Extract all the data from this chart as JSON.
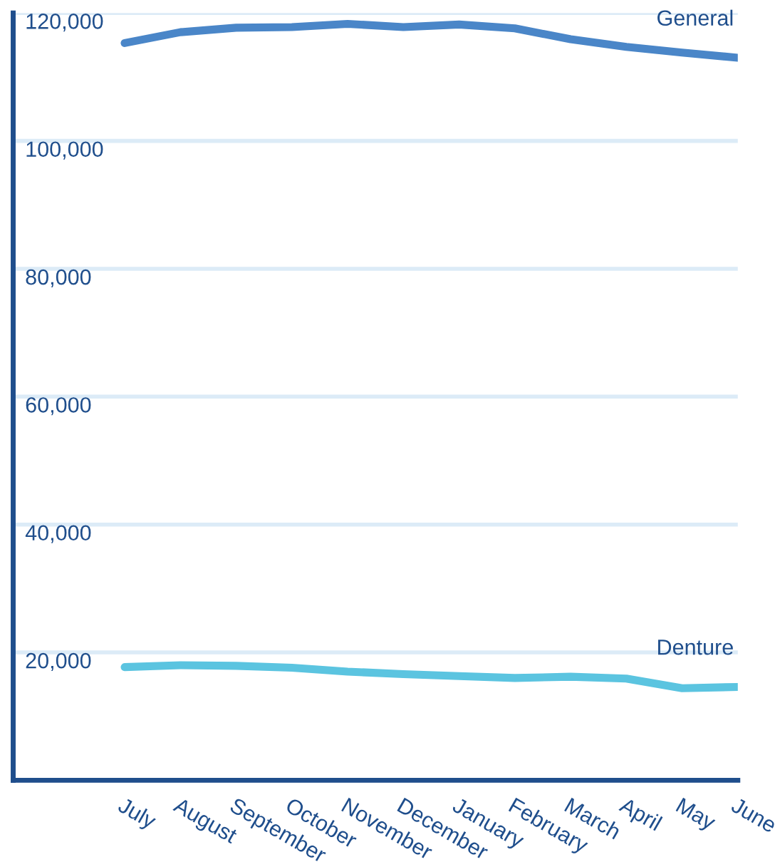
{
  "chart_data": {
    "type": "line",
    "categories": [
      "July",
      "August",
      "September",
      "October",
      "November",
      "December",
      "January",
      "February",
      "March",
      "April",
      "May",
      "June"
    ],
    "series": [
      {
        "name": "General",
        "color": "#4a86c8",
        "values": [
          115300,
          117000,
          117700,
          117800,
          118300,
          117800,
          118200,
          117600,
          115900,
          114700,
          113800,
          113000
        ]
      },
      {
        "name": "Denture",
        "color": "#5bc4e0",
        "values": [
          17700,
          18000,
          17900,
          17600,
          17000,
          16600,
          16300,
          16000,
          16200,
          15900,
          14400,
          14600
        ]
      }
    ],
    "ylim": [
      0,
      120000
    ],
    "yticks": [
      {
        "value": 20000,
        "label": "20,000"
      },
      {
        "value": 40000,
        "label": "40,000"
      },
      {
        "value": 60000,
        "label": "60,000"
      },
      {
        "value": 80000,
        "label": "80,000"
      },
      {
        "value": 100000,
        "label": "100,000"
      },
      {
        "value": 120000,
        "label": "120,000"
      }
    ],
    "grid": "y",
    "legend": false,
    "marker": "none",
    "line_style": "solid"
  }
}
